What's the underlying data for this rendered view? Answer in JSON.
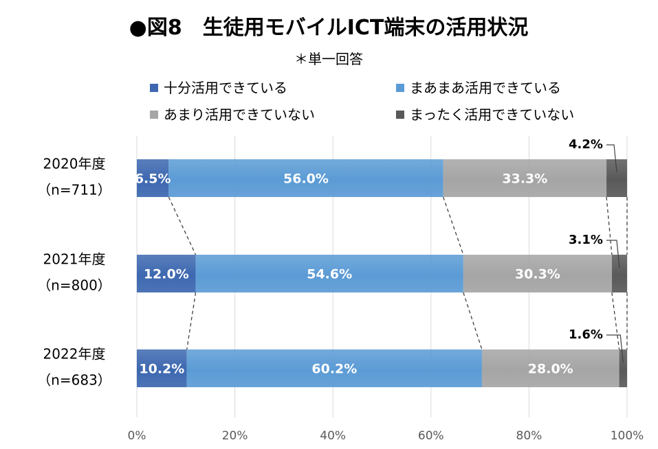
{
  "title": "●図8　生徒用モバイルICT端末の活用状況",
  "subtitle": "＊単一回答",
  "chart_data": {
    "type": "bar",
    "orientation": "horizontal",
    "stacked": "100%",
    "title": "●図8　生徒用モバイルICT端末の活用状況",
    "subtitle": "＊単一回答",
    "categories": [
      {
        "year": "2020年度",
        "n": "（n=711）"
      },
      {
        "year": "2021年度",
        "n": "（n=800）"
      },
      {
        "year": "2022年度",
        "n": "（n=683）"
      }
    ],
    "series": [
      {
        "name": "十分活用できている",
        "color": "#3d68b0",
        "values": [
          6.5,
          12.0,
          10.2
        ],
        "labels": [
          "6.5%",
          "12.0%",
          "10.2%"
        ]
      },
      {
        "name": "まあまあ活用できている",
        "color": "#5b9bd5",
        "values": [
          56.0,
          54.6,
          60.2
        ],
        "labels": [
          "56.0%",
          "54.6%",
          "60.2%"
        ]
      },
      {
        "name": "あまり活用できていない",
        "color": "#a5a5a5",
        "values": [
          33.3,
          30.3,
          28.0
        ],
        "labels": [
          "33.3%",
          "30.3%",
          "28.0%"
        ]
      },
      {
        "name": "まったく活用できていない",
        "color": "#595959",
        "values": [
          4.2,
          3.1,
          1.6
        ],
        "labels": [
          "4.2%",
          "3.1%",
          "1.6%"
        ]
      }
    ],
    "x_ticks": [
      "0%",
      "20%",
      "40%",
      "60%",
      "80%",
      "100%"
    ],
    "xlim": [
      0,
      100
    ],
    "grid": true,
    "legend_position": "top",
    "series_lines": true
  }
}
